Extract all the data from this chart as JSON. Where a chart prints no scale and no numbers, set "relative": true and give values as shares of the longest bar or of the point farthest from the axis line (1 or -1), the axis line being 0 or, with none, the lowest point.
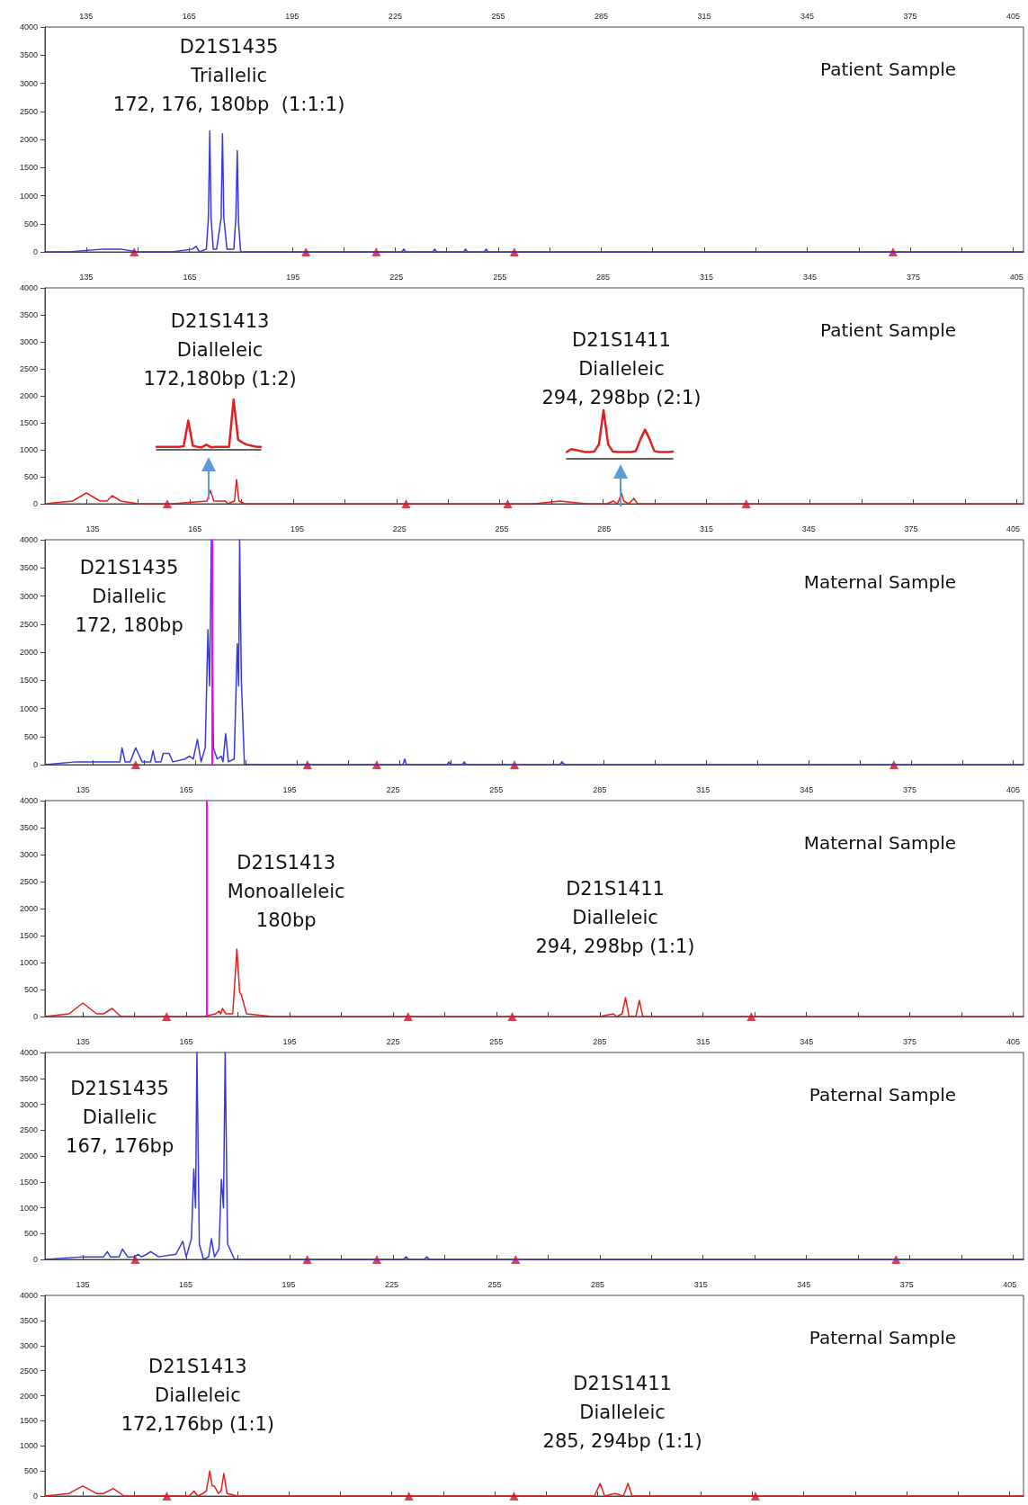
{
  "chart_data": [
    {
      "type": "line",
      "title": "Patient Sample",
      "xlim": [
        123,
        408
      ],
      "ylim": [
        0,
        4000
      ],
      "marker": "none",
      "line_style": "solid",
      "xticks": [
        135,
        {
          "value": 150,
          "label": null
        },
        165,
        {
          "value": 180,
          "label": null
        },
        195,
        {
          "value": 210,
          "label": null
        },
        225,
        {
          "value": 240,
          "label": null
        },
        255,
        {
          "value": 270,
          "label": null
        },
        285,
        {
          "value": 300,
          "label": null
        },
        315,
        {
          "value": 330,
          "label": null
        },
        345,
        {
          "value": 360,
          "label": null
        },
        375,
        {
          "value": 390,
          "label": null
        },
        405
      ],
      "yticks": [
        0,
        500,
        1000,
        1500,
        2000,
        2500,
        3000,
        3500,
        4000
      ],
      "annotations": [
        "D21S1435\nTriallelic\n172, 176, 180bp  (1:1:1)"
      ],
      "series": [
        {
          "color": "#3a3ad6",
          "x": [
            123,
            130,
            140,
            145,
            150,
            160,
            166,
            167,
            168,
            170,
            170.6,
            171,
            171.4,
            172,
            173,
            174.3,
            174.7,
            175.1,
            176,
            178,
            178.6,
            179,
            179.4,
            180,
            190,
            227,
            227.5,
            228,
            236,
            236.5,
            237,
            245,
            245.5,
            246,
            251,
            251.5,
            252,
            300,
            408
          ],
          "values": [
            0,
            0,
            50,
            50,
            0,
            0,
            50,
            100,
            0,
            50,
            600,
            2150,
            600,
            50,
            50,
            600,
            2100,
            600,
            50,
            50,
            600,
            1800,
            500,
            0,
            0,
            0,
            50,
            0,
            0,
            50,
            0,
            0,
            50,
            0,
            0,
            50,
            0,
            0,
            0
          ]
        },
        {
          "type": "scatter",
          "marker": "triangle",
          "color": "#c8102e",
          "x": [
            149,
            199,
            219.5,
            259.7,
            370
          ],
          "values": [
            0,
            0,
            0,
            0,
            0
          ]
        }
      ]
    },
    {
      "type": "line",
      "title": "Patient Sample",
      "xlim": [
        123,
        407
      ],
      "ylim": [
        0,
        4000
      ],
      "marker": "none",
      "line_style": "solid",
      "xticks": [
        135,
        {
          "value": 150,
          "label": null
        },
        165,
        {
          "value": 180,
          "label": null
        },
        195,
        {
          "value": 210,
          "label": null
        },
        225,
        {
          "value": 240,
          "label": null
        },
        255,
        {
          "value": 270,
          "label": null
        },
        285,
        {
          "value": 300,
          "label": null
        },
        315,
        {
          "value": 330,
          "label": null
        },
        345,
        {
          "value": 360,
          "label": null
        },
        375,
        {
          "value": 390,
          "label": null
        },
        405
      ],
      "yticks": [
        0,
        500,
        1000,
        1500,
        2000,
        2500,
        3000,
        3500,
        4000
      ],
      "annotations": [
        "D21S1413\nDialleleic\n172,180bp (1:2)",
        "D21S1411\nDialleleic\n294, 298bp (2:1)"
      ],
      "series": [
        {
          "color": "#e02020",
          "x": [
            123,
            131,
            135,
            139,
            141,
            142.5,
            145,
            150,
            160,
            170,
            171,
            172,
            174,
            175.4,
            176,
            178,
            178.6,
            179.3,
            181,
            190,
            230,
            265,
            272.5,
            280,
            286,
            288,
            289,
            289.5,
            290.3,
            291,
            292.5,
            293.9,
            295,
            300,
            407
          ],
          "values": [
            0,
            50,
            200,
            50,
            50,
            150,
            50,
            0,
            0,
            50,
            250,
            50,
            50,
            50,
            0,
            50,
            450,
            50,
            0,
            0,
            0,
            0,
            50,
            0,
            0,
            50,
            0,
            50,
            200,
            50,
            0,
            100,
            0,
            0,
            0
          ]
        },
        {
          "type": "scatter",
          "marker": "triangle",
          "color": "#c8102e",
          "x": [
            158.5,
            227.8,
            257.3,
            326.5
          ],
          "values": [
            0,
            0,
            0,
            0
          ]
        }
      ]
    },
    {
      "type": "line",
      "title": "Maternal Sample",
      "xlim": [
        121,
        408
      ],
      "ylim": [
        0,
        4000
      ],
      "marker": "none",
      "line_style": "solid",
      "xticks": [
        135,
        {
          "value": 150,
          "label": null
        },
        165,
        {
          "value": 180,
          "label": null
        },
        195,
        {
          "value": 210,
          "label": null
        },
        225,
        {
          "value": 240,
          "label": null
        },
        255,
        {
          "value": 270,
          "label": null
        },
        285,
        {
          "value": 300,
          "label": null
        },
        315,
        {
          "value": 330,
          "label": null
        },
        345,
        {
          "value": 360,
          "label": null
        },
        375,
        {
          "value": 390,
          "label": null
        },
        405
      ],
      "yticks": [
        0,
        500,
        1000,
        1500,
        2000,
        2500,
        3000,
        3500,
        4000
      ],
      "ref_lines": [
        {
          "axis": "x",
          "value": 170,
          "color": "#ff00ff"
        }
      ],
      "annotations": [
        "D21S1435\nDiallelic\n172, 180bp"
      ],
      "series": [
        {
          "color": "#3a3ad6",
          "x": [
            121,
            130,
            137,
            141,
            143,
            143.6,
            144.5,
            146,
            147.6,
            149.5,
            152,
            152.7,
            153.4,
            155,
            155.7,
            157.4,
            158.5,
            162,
            163.4,
            164.5,
            165.7,
            166.8,
            168,
            168.8,
            169.3,
            169.8,
            170.4,
            171.5,
            172.7,
            173.2,
            174,
            174.8,
            176.5,
            177.4,
            177.8,
            178.1,
            178.6,
            179.5,
            190,
            226,
            226.5,
            227,
            239,
            239.5,
            240,
            243.5,
            244,
            244.5,
            272,
            272.6,
            273.5,
            300,
            408
          ],
          "values": [
            0,
            50,
            50,
            50,
            50,
            300,
            50,
            50,
            300,
            50,
            50,
            250,
            50,
            50,
            200,
            200,
            50,
            100,
            150,
            100,
            450,
            50,
            300,
            2400,
            1400,
            4000,
            300,
            100,
            150,
            50,
            550,
            50,
            100,
            2150,
            1400,
            4000,
            1500,
            0,
            0,
            0,
            100,
            0,
            0,
            50,
            0,
            0,
            50,
            0,
            0,
            50,
            0,
            0,
            0
          ]
        },
        {
          "type": "scatter",
          "marker": "triangle",
          "color": "#c8102e",
          "x": [
            147.6,
            198,
            218.3,
            258.7,
            370
          ],
          "values": [
            0,
            0,
            0,
            0,
            0
          ]
        }
      ]
    },
    {
      "type": "line",
      "title": "Maternal Sample",
      "xlim": [
        124,
        408
      ],
      "ylim": [
        0,
        4000
      ],
      "marker": "none",
      "line_style": "solid",
      "xticks": [
        135,
        {
          "value": 150,
          "label": null
        },
        165,
        {
          "value": 180,
          "label": null
        },
        195,
        {
          "value": 210,
          "label": null
        },
        225,
        {
          "value": 240,
          "label": null
        },
        255,
        {
          "value": 270,
          "label": null
        },
        285,
        {
          "value": 300,
          "label": null
        },
        315,
        {
          "value": 330,
          "label": null
        },
        345,
        {
          "value": 360,
          "label": null
        },
        375,
        {
          "value": 390,
          "label": null
        },
        405
      ],
      "yticks": [
        0,
        500,
        1000,
        1500,
        2000,
        2500,
        3000,
        3500,
        4000
      ],
      "ref_lines": [
        {
          "axis": "x",
          "value": 171,
          "color": "#ff00ff"
        }
      ],
      "annotations": [
        "D21S1413\nMonoalleleic\n180bp",
        "D21S1411\nDialleleic\n294, 298bp (1:1)"
      ],
      "series": [
        {
          "color": "#e02020",
          "x": [
            124,
            131,
            135,
            139,
            141,
            143.5,
            146,
            150,
            160,
            170,
            173.5,
            174.5,
            175,
            175.5,
            176.5,
            178.5,
            179.7,
            180.5,
            181,
            182.5,
            190,
            250,
            285,
            288.9,
            290,
            291.5,
            292.5,
            293.5,
            295.5,
            296.5,
            297.5,
            300,
            408
          ],
          "values": [
            0,
            50,
            250,
            50,
            50,
            150,
            0,
            0,
            0,
            0,
            50,
            100,
            50,
            150,
            50,
            50,
            1250,
            450,
            400,
            50,
            0,
            0,
            0,
            50,
            0,
            50,
            350,
            0,
            0,
            300,
            0,
            0,
            0
          ]
        },
        {
          "type": "scatter",
          "marker": "triangle",
          "color": "#c8102e",
          "x": [
            159.3,
            229.4,
            259.6,
            329
          ],
          "values": [
            0,
            0,
            0,
            0
          ]
        }
      ]
    },
    {
      "type": "line",
      "title": "Paternal Sample",
      "xlim": [
        124,
        408
      ],
      "ylim": [
        0,
        4000
      ],
      "marker": "none",
      "line_style": "solid",
      "xticks": [
        135,
        {
          "value": 150,
          "label": null
        },
        165,
        {
          "value": 180,
          "label": null
        },
        195,
        {
          "value": 210,
          "label": null
        },
        225,
        {
          "value": 240,
          "label": null
        },
        255,
        {
          "value": 270,
          "label": null
        },
        285,
        {
          "value": 300,
          "label": null
        },
        315,
        {
          "value": 330,
          "label": null
        },
        345,
        {
          "value": 360,
          "label": null
        },
        375,
        {
          "value": 390,
          "label": null
        },
        405
      ],
      "yticks": [
        0,
        500,
        1000,
        1500,
        2000,
        2500,
        3000,
        3500,
        4000
      ],
      "annotations": [
        "D21S1435\nDiallelic\n167, 176bp"
      ],
      "series": [
        {
          "color": "#3a3ad6",
          "x": [
            124,
            135,
            141,
            142.1,
            143,
            145.5,
            146.5,
            148,
            150,
            151,
            152,
            153.5,
            154.7,
            157,
            162,
            164,
            165,
            166.5,
            167.2,
            167.7,
            168.1,
            168.8,
            170,
            171.5,
            172.3,
            173.2,
            174.5,
            175.2,
            175.8,
            176.3,
            177,
            179,
            190,
            228,
            228.8,
            229.5,
            234,
            234.9,
            235.5,
            300,
            408
          ],
          "values": [
            0,
            50,
            50,
            150,
            50,
            50,
            200,
            50,
            50,
            100,
            50,
            100,
            150,
            50,
            100,
            350,
            50,
            400,
            1750,
            1000,
            4000,
            300,
            0,
            50,
            400,
            50,
            200,
            1550,
            1000,
            4000,
            300,
            0,
            0,
            0,
            50,
            0,
            0,
            50,
            0,
            0,
            0
          ]
        },
        {
          "type": "scatter",
          "marker": "triangle",
          "color": "#c8102e",
          "x": [
            150.2,
            200.1,
            220.3,
            260.6,
            371
          ],
          "values": [
            0,
            0,
            0,
            0,
            0
          ]
        }
      ]
    },
    {
      "type": "line",
      "title": "Paternal Sample",
      "xlim": [
        124,
        409
      ],
      "ylim": [
        0,
        4000
      ],
      "marker": "none",
      "line_style": "solid",
      "xticks": [
        135,
        {
          "value": 150,
          "label": null
        },
        165,
        {
          "value": 180,
          "label": null
        },
        195,
        {
          "value": 210,
          "label": null
        },
        225,
        {
          "value": 240,
          "label": null
        },
        255,
        {
          "value": 270,
          "label": null
        },
        285,
        {
          "value": 300,
          "label": null
        },
        315,
        {
          "value": 330,
          "label": null
        },
        345,
        {
          "value": 360,
          "label": null
        },
        375,
        {
          "value": 390,
          "label": null
        },
        405
      ],
      "yticks": [
        0,
        500,
        1000,
        1500,
        2000,
        2500,
        3000,
        3500,
        4000
      ],
      "annotations": [
        "D21S1413\nDialleleic\n172,176bp (1:1)",
        "D21S1411\nDialleleic\n285, 294bp (1:1)"
      ],
      "series": [
        {
          "color": "#e02020",
          "x": [
            124,
            131,
            135,
            139,
            141,
            143.9,
            147,
            150,
            160,
            166,
            167.4,
            168.5,
            170,
            171,
            172,
            172.7,
            173.3,
            174.5,
            175.3,
            176.1,
            177,
            180,
            250,
            284,
            285.7,
            287,
            290,
            292.5,
            293.8,
            295,
            300,
            409
          ],
          "values": [
            0,
            50,
            200,
            50,
            50,
            150,
            0,
            0,
            0,
            0,
            100,
            0,
            50,
            100,
            500,
            200,
            200,
            50,
            100,
            450,
            50,
            0,
            0,
            0,
            250,
            0,
            50,
            0,
            250,
            0,
            0,
            0
          ]
        },
        {
          "type": "scatter",
          "marker": "triangle",
          "color": "#c8102e",
          "x": [
            159.5,
            230,
            260.6,
            330.9
          ],
          "values": [
            0,
            0,
            0,
            0
          ]
        }
      ]
    },
    {
      "type": "line",
      "relative": true,
      "categories": [
        null,
        null,
        null,
        null,
        null,
        null,
        null,
        null,
        null,
        null,
        null,
        null,
        null,
        null,
        null,
        null,
        null,
        null,
        null,
        null,
        null,
        null,
        null,
        null
      ],
      "series": [
        {
          "color": "#e02020",
          "values": [
            0.06,
            0.06,
            0.06,
            0.06,
            0.06,
            0.06,
            0.07,
            0.58,
            0.08,
            0.06,
            0.05,
            0.1,
            0.05,
            0.06,
            0.06,
            0.06,
            0.06,
            1,
            0.2,
            0.14,
            0.1,
            0.08,
            0.06,
            0.06
          ]
        }
      ]
    },
    {
      "type": "line",
      "relative": true,
      "categories": [
        null,
        null,
        null,
        null,
        null,
        null,
        null,
        null,
        null,
        null,
        null,
        null,
        null,
        null,
        null,
        null,
        null,
        null,
        null,
        null,
        null,
        null,
        null,
        null
      ],
      "series": [
        {
          "color": "#e02020",
          "values": [
            0.14,
            0.2,
            0.18,
            0.16,
            0.14,
            0.14,
            0.15,
            0.3,
            1,
            0.3,
            0.15,
            0.14,
            0.14,
            0.14,
            0.14,
            0.16,
            0.4,
            0.6,
            0.4,
            0.16,
            0.14,
            0.14,
            0.14,
            0.15
          ]
        }
      ]
    }
  ]
}
